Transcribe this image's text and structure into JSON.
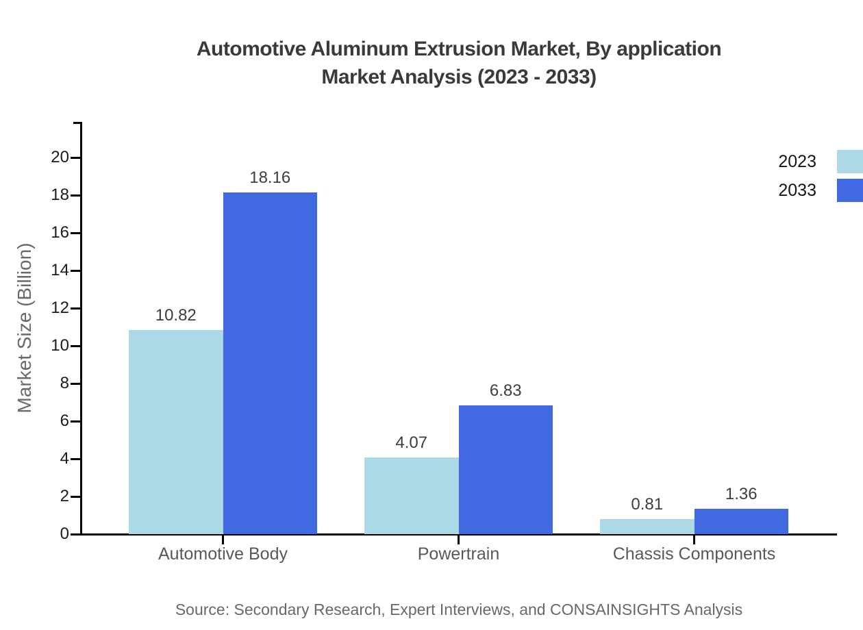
{
  "title": {
    "line1": "Automotive Aluminum Extrusion Market, By application",
    "line2": "Market Analysis (2023 - 2033)"
  },
  "source": "Source: Secondary Research, Expert Interviews, and CONSAINSIGHTS Analysis",
  "chart_data": {
    "type": "bar",
    "title": "Automotive Aluminum Extrusion Market, By application Market Analysis (2023 - 2033)",
    "categories": [
      "Automotive Body",
      "Powertrain",
      "Chassis Components"
    ],
    "series": [
      {
        "name": "2023",
        "color": "#add8e6",
        "values": [
          10.82,
          4.07,
          0.81
        ]
      },
      {
        "name": "2033",
        "color": "#4169e1",
        "values": [
          18.16,
          6.83,
          1.36
        ]
      }
    ],
    "xlabel": "",
    "ylabel": "Market Size (Billion)",
    "ylim": [
      0,
      22
    ],
    "yticks": [
      0,
      2,
      4,
      6,
      8,
      10,
      12,
      14,
      16,
      18,
      20
    ],
    "grid": false,
    "value_labels": true,
    "value_label_decimals": 2,
    "legend": {
      "position": "top-right",
      "entries": [
        "2023",
        "2033"
      ]
    },
    "axis_color": "#000000"
  }
}
